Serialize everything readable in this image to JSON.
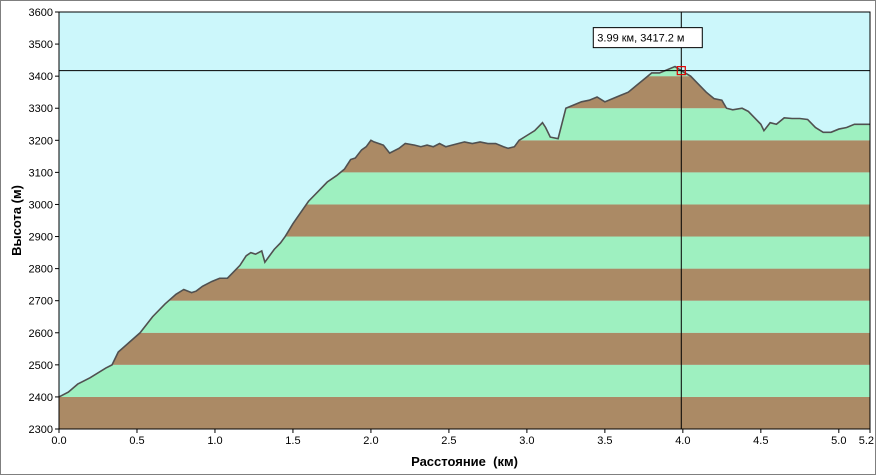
{
  "chart_data": {
    "type": "area",
    "title": "",
    "xlabel": "Расстояние  (км)",
    "ylabel": "Высота (м)",
    "xlim": [
      0,
      5.2
    ],
    "ylim": [
      2300,
      3600
    ],
    "x_ticks": [
      "0.0",
      "0.5",
      "1.0",
      "1.5",
      "2.0",
      "2.5",
      "3.0",
      "3.5",
      "4.0",
      "4.5",
      "5.0",
      "5.2"
    ],
    "y_ticks": [
      "2300",
      "2400",
      "2500",
      "2600",
      "2700",
      "2800",
      "2900",
      "3000",
      "3100",
      "3200",
      "3300",
      "3400",
      "3500",
      "3600"
    ],
    "band_colors": [
      "#ab8a65",
      "#9ef0c0"
    ],
    "background": "#ccf7fb",
    "line_color": "#505050",
    "cursor": {
      "x": 3.99,
      "y": 3417.2,
      "label": "3.99 км, 3417.2 м"
    },
    "series": [
      {
        "x": [
          0.0,
          0.06,
          0.12,
          0.2,
          0.3,
          0.34,
          0.38,
          0.45,
          0.52,
          0.6,
          0.68,
          0.75,
          0.8,
          0.85,
          0.88,
          0.92,
          0.98,
          1.03,
          1.08,
          1.12,
          1.16,
          1.2,
          1.23,
          1.26,
          1.3,
          1.32,
          1.35,
          1.38,
          1.42,
          1.45,
          1.5,
          1.55,
          1.6,
          1.66,
          1.72,
          1.78,
          1.83,
          1.87,
          1.9,
          1.94,
          1.97,
          2.0,
          2.02,
          2.05,
          2.08,
          2.12,
          2.18,
          2.22,
          2.28,
          2.32,
          2.36,
          2.4,
          2.44,
          2.48,
          2.52,
          2.56,
          2.6,
          2.65,
          2.7,
          2.75,
          2.8,
          2.85,
          2.88,
          2.92,
          2.95,
          3.0,
          3.05,
          3.1,
          3.12,
          3.15,
          3.2,
          3.25,
          3.3,
          3.35,
          3.4,
          3.45,
          3.5,
          3.55,
          3.6,
          3.65,
          3.7,
          3.75,
          3.8,
          3.85,
          3.9,
          3.95,
          3.99,
          4.05,
          4.1,
          4.15,
          4.2,
          4.25,
          4.28,
          4.32,
          4.38,
          4.42,
          4.46,
          4.5,
          4.52,
          4.56,
          4.6,
          4.65,
          4.7,
          4.75,
          4.8,
          4.85,
          4.9,
          4.95,
          5.0,
          5.05,
          5.1,
          5.15,
          5.2
        ],
        "values": [
          2400,
          2415,
          2440,
          2460,
          2490,
          2500,
          2540,
          2570,
          2600,
          2650,
          2690,
          2720,
          2735,
          2725,
          2730,
          2745,
          2760,
          2770,
          2770,
          2790,
          2810,
          2840,
          2850,
          2845,
          2855,
          2820,
          2840,
          2860,
          2880,
          2900,
          2940,
          2975,
          3010,
          3040,
          3070,
          3090,
          3110,
          3140,
          3145,
          3170,
          3180,
          3200,
          3195,
          3190,
          3185,
          3160,
          3175,
          3190,
          3185,
          3180,
          3185,
          3180,
          3190,
          3180,
          3185,
          3190,
          3195,
          3190,
          3195,
          3190,
          3190,
          3180,
          3175,
          3180,
          3200,
          3215,
          3230,
          3255,
          3240,
          3210,
          3205,
          3300,
          3310,
          3320,
          3325,
          3335,
          3320,
          3330,
          3340,
          3350,
          3370,
          3390,
          3410,
          3410,
          3420,
          3430,
          3417.2,
          3400,
          3375,
          3350,
          3330,
          3325,
          3300,
          3295,
          3300,
          3290,
          3270,
          3250,
          3230,
          3255,
          3250,
          3270,
          3268,
          3268,
          3265,
          3240,
          3225,
          3225,
          3235,
          3240,
          3250,
          3250,
          3250
        ]
      }
    ]
  }
}
